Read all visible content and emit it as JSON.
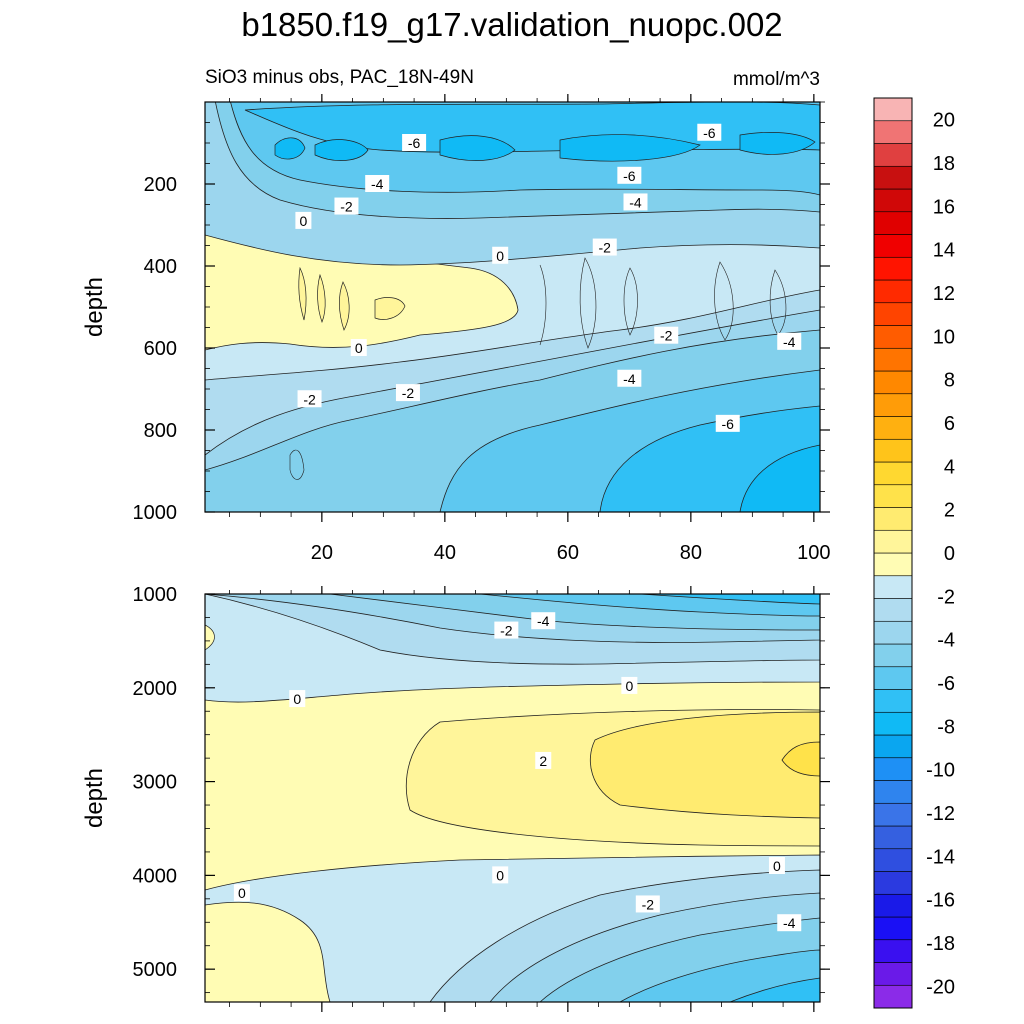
{
  "chart_data": {
    "type": "heatmap",
    "title": "b1850.f19_g17.validation_nuopc.002",
    "subtitle_left": "SiO3 minus obs, PAC_18N-49N",
    "subtitle_right": "mmol/m^3",
    "ylabel": "depth",
    "x_ticks": [
      "20",
      "40",
      "60",
      "80",
      "100"
    ],
    "x_tick_values": [
      20,
      40,
      60,
      80,
      100
    ],
    "xlim": [
      1,
      101
    ],
    "panels": [
      {
        "name": "upper",
        "ylim": [
          0,
          1000
        ],
        "y_ticks": [
          "200",
          "400",
          "600",
          "800",
          "1000"
        ],
        "y_tick_values": [
          200,
          400,
          600,
          800,
          1000
        ],
        "contour_labels": [
          {
            "x": 35,
            "y": 100,
            "text": "-6"
          },
          {
            "x": 83,
            "y": 75,
            "text": "-6"
          },
          {
            "x": 70,
            "y": 180,
            "text": "-6"
          },
          {
            "x": 29,
            "y": 200,
            "text": "-4"
          },
          {
            "x": 71,
            "y": 245,
            "text": "-4"
          },
          {
            "x": 24,
            "y": 255,
            "text": "-2"
          },
          {
            "x": 17,
            "y": 290,
            "text": "0"
          },
          {
            "x": 49,
            "y": 375,
            "text": "0"
          },
          {
            "x": 66,
            "y": 355,
            "text": "-2"
          },
          {
            "x": 26,
            "y": 600,
            "text": "0"
          },
          {
            "x": 76,
            "y": 570,
            "text": "-2"
          },
          {
            "x": 96,
            "y": 585,
            "text": "-4"
          },
          {
            "x": 70,
            "y": 675,
            "text": "-4"
          },
          {
            "x": 18,
            "y": 725,
            "text": "-2"
          },
          {
            "x": 34,
            "y": 710,
            "text": "-2"
          },
          {
            "x": 86,
            "y": 785,
            "text": "-6"
          }
        ]
      },
      {
        "name": "lower",
        "ylim": [
          1000,
          5350
        ],
        "y_ticks": [
          "1000",
          "2000",
          "3000",
          "4000",
          "5000"
        ],
        "y_tick_values": [
          1000,
          2000,
          3000,
          4000,
          5000
        ],
        "contour_labels": [
          {
            "x": 56,
            "y": 1290,
            "text": "-4"
          },
          {
            "x": 50,
            "y": 1390,
            "text": "-2"
          },
          {
            "x": 16,
            "y": 2120,
            "text": "0"
          },
          {
            "x": 70,
            "y": 1980,
            "text": "0"
          },
          {
            "x": 56,
            "y": 2780,
            "text": "2"
          },
          {
            "x": 49,
            "y": 4000,
            "text": "0"
          },
          {
            "x": 94,
            "y": 3900,
            "text": "0"
          },
          {
            "x": 7,
            "y": 4190,
            "text": "0"
          },
          {
            "x": 73,
            "y": 4310,
            "text": "-2"
          },
          {
            "x": 96,
            "y": 4510,
            "text": "-4"
          }
        ]
      }
    ],
    "colorbar": {
      "levels": [
        -21,
        -20,
        -19,
        -18,
        -17,
        -16,
        -15,
        -14,
        -13,
        -12,
        -11,
        -10,
        -9,
        -8,
        -7,
        -6,
        -5,
        -4,
        -3,
        -2,
        -1,
        0,
        1,
        2,
        3,
        4,
        5,
        6,
        7,
        8,
        9,
        10,
        11,
        12,
        13,
        14,
        15,
        16,
        17,
        18,
        19,
        20,
        21
      ],
      "tick_labels": [
        "20",
        "18",
        "16",
        "14",
        "12",
        "10",
        "8",
        "6",
        "4",
        "2",
        "0",
        "-2",
        "-4",
        "-6",
        "-8",
        "-10",
        "-12",
        "-14",
        "-16",
        "-18",
        "-20"
      ],
      "tick_values": [
        20,
        18,
        16,
        14,
        12,
        10,
        8,
        6,
        4,
        2,
        0,
        -2,
        -4,
        -6,
        -8,
        -10,
        -12,
        -14,
        -16,
        -18,
        -20
      ],
      "colors": [
        "#8b2be8",
        "#6a1ae8",
        "#3a10f0",
        "#1a10f5",
        "#1a1ae8",
        "#2b3ae0",
        "#2f4fe0",
        "#3560e0",
        "#3a74e8",
        "#2f84ee",
        "#1e90f5",
        "#0aa6f0",
        "#10baf5",
        "#30c0f5",
        "#5ec8f0",
        "#82d0ec",
        "#9cd6ee",
        "#b0dcf0",
        "#c8e8f5",
        "#fffcb4",
        "#fff59a",
        "#ffeb70",
        "#ffe24a",
        "#ffd830",
        "#ffc41a",
        "#ffb010",
        "#ff9c08",
        "#ff8800",
        "#ff7400",
        "#ff5c00",
        "#ff4400",
        "#ff2a00",
        "#ff1400",
        "#f00000",
        "#e00000",
        "#d00808",
        "#c81010",
        "#e04040",
        "#f07474",
        "#f8b4b4"
      ]
    }
  }
}
